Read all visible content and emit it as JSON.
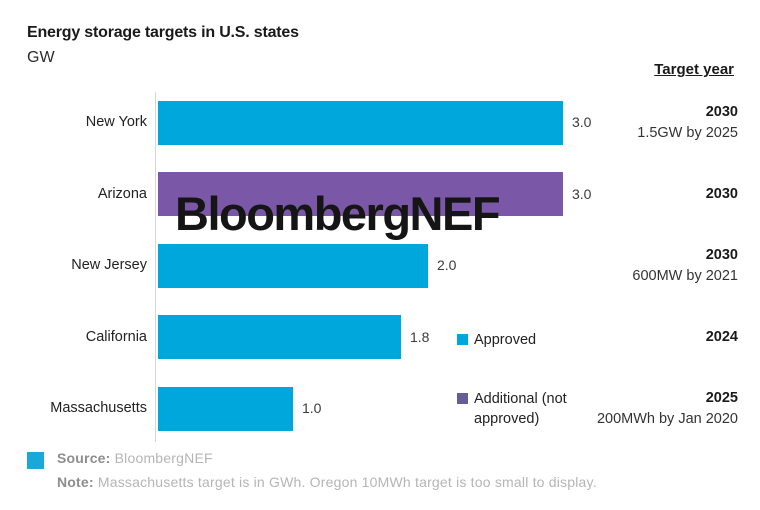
{
  "title": "Energy storage targets in U.S. states",
  "unit_label": "GW",
  "target_year_header": "Target year",
  "watermark": "BloombergNEF",
  "colors": {
    "approved": "#00a7dd",
    "additional": "#7a58a7",
    "legend_additional": "#645d97",
    "footer_mark": "#19a8d8"
  },
  "rows": [
    {
      "state": "New York",
      "value": 3.0,
      "value_label": "3.0",
      "series": "approved",
      "target_year": "2030",
      "target_note": "1.5GW by 2025"
    },
    {
      "state": "Arizona",
      "value": 3.0,
      "value_label": "3.0",
      "series": "additional",
      "target_year": "2030",
      "target_note": ""
    },
    {
      "state": "New Jersey",
      "value": 2.0,
      "value_label": "2.0",
      "series": "approved",
      "target_year": "2030",
      "target_note": "600MW by 2021"
    },
    {
      "state": "California",
      "value": 1.8,
      "value_label": "1.8",
      "series": "approved",
      "target_year": "2024",
      "target_note": ""
    },
    {
      "state": "Massachusetts",
      "value": 1.0,
      "value_label": "1.0",
      "series": "approved",
      "target_year": "2025",
      "target_note": "200MWh by Jan 2020"
    }
  ],
  "legend": [
    {
      "label": "Approved",
      "series": "approved"
    },
    {
      "label": "Additional (not approved)",
      "series": "legend_additional"
    }
  ],
  "footer": {
    "source_label": "Source:",
    "source_value": "BloombergNEF",
    "note_label": "Note:",
    "note_value": "Massachusetts target is in GWh. Oregon 10MWh target is too small to display."
  },
  "chart_data": {
    "type": "bar",
    "orientation": "horizontal",
    "title": "Energy storage targets in U.S. states",
    "unit": "GW",
    "categories": [
      "New York",
      "Arizona",
      "New Jersey",
      "California",
      "Massachusetts"
    ],
    "values": [
      3.0,
      3.0,
      2.0,
      1.8,
      1.0
    ],
    "data_labels": [
      "3.0",
      "3.0",
      "2.0",
      "1.8",
      "1.0"
    ],
    "series_assignment": [
      "Approved",
      "Additional (not approved)",
      "Approved",
      "Approved",
      "Approved"
    ],
    "target_years": [
      "2030",
      "2030",
      "2030",
      "2024",
      "2025"
    ],
    "target_notes": [
      "1.5GW by 2025",
      "",
      "600MW by 2021",
      "",
      "200MWh by Jan 2020"
    ],
    "xlim": [
      0,
      3.0
    ],
    "grid": false,
    "legend": [
      "Approved",
      "Additional (not approved)"
    ],
    "legend_position": "center-right",
    "source": "BloombergNEF",
    "note": "Massachusetts target is in GWh. Oregon 10MWh target is too small to display."
  }
}
